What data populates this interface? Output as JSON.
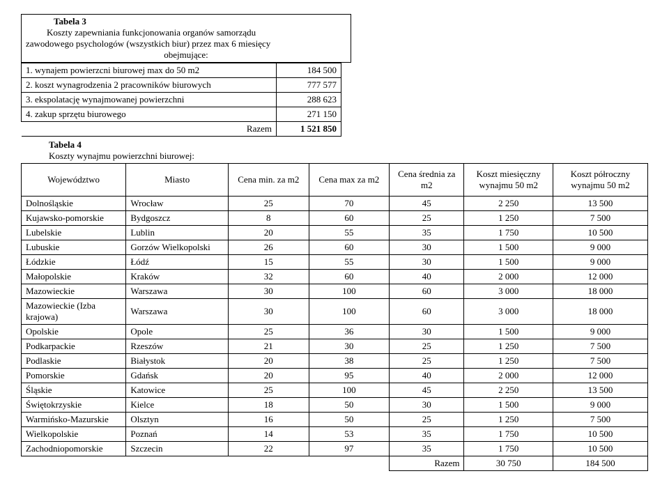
{
  "table3": {
    "label": "Tabela 3",
    "desc_line1": "Koszty zapewniania funkcjonowania organów samorządu",
    "desc_line2": "zawodowego psychologów (wszystkich biur) przez max 6 miesięcy",
    "desc_line3": "obejmujące:",
    "rows": [
      {
        "label": "1. wynajem powierzcni biurowej max do 50 m2",
        "value": "184 500"
      },
      {
        "label": "2. koszt wynagrodzenia 2 pracowników biurowych",
        "value": "777 577"
      },
      {
        "label": "3. ekspolatację wynajmowanej powierzchni",
        "value": "288 623"
      },
      {
        "label": "4. zakup sprzętu biurowego",
        "value": "271 150"
      }
    ],
    "razem_label": "Razem",
    "razem_value": "1 521 850"
  },
  "table4": {
    "label": "Tabela 4",
    "subtitle": "Koszty wynajmu powierzchni biurowej:",
    "headers": {
      "woj": "Województwo",
      "miasto": "Miasto",
      "cmin": "Cena min. za m2",
      "cmax": "Cena max za m2",
      "cavg": "Cena średnia za m2",
      "kmies": "Koszt miesięczny wynajmu 50 m2",
      "kpol": "Koszt półroczny wynajmu 50 m2"
    },
    "rows": [
      {
        "woj": "Dolnośląskie",
        "miasto": "Wrocław",
        "cmin": "25",
        "cmax": "70",
        "cavg": "45",
        "kmies": "2 250",
        "kpol": "13 500"
      },
      {
        "woj": "Kujawsko-pomorskie",
        "miasto": "Bydgoszcz",
        "cmin": "8",
        "cmax": "60",
        "cavg": "25",
        "kmies": "1 250",
        "kpol": "7 500"
      },
      {
        "woj": "Lubelskie",
        "miasto": "Lublin",
        "cmin": "20",
        "cmax": "55",
        "cavg": "35",
        "kmies": "1 750",
        "kpol": "10 500"
      },
      {
        "woj": "Lubuskie",
        "miasto": "Gorzów Wielkopolski",
        "cmin": "26",
        "cmax": "60",
        "cavg": "30",
        "kmies": "1 500",
        "kpol": "9 000"
      },
      {
        "woj": "Łódzkie",
        "miasto": "Łódź",
        "cmin": "15",
        "cmax": "55",
        "cavg": "30",
        "kmies": "1 500",
        "kpol": "9 000"
      },
      {
        "woj": "Małopolskie",
        "miasto": "Kraków",
        "cmin": "32",
        "cmax": "60",
        "cavg": "40",
        "kmies": "2 000",
        "kpol": "12 000"
      },
      {
        "woj": "Mazowieckie",
        "miasto": "Warszawa",
        "cmin": "30",
        "cmax": "100",
        "cavg": "60",
        "kmies": "3 000",
        "kpol": "18 000"
      },
      {
        "woj": "Mazowieckie (Izba krajowa)",
        "miasto": "Warszawa",
        "cmin": "30",
        "cmax": "100",
        "cavg": "60",
        "kmies": "3 000",
        "kpol": "18 000"
      },
      {
        "woj": "Opolskie",
        "miasto": "Opole",
        "cmin": "25",
        "cmax": "36",
        "cavg": "30",
        "kmies": "1 500",
        "kpol": "9 000"
      },
      {
        "woj": "Podkarpackie",
        "miasto": "Rzeszów",
        "cmin": "21",
        "cmax": "30",
        "cavg": "25",
        "kmies": "1 250",
        "kpol": "7 500"
      },
      {
        "woj": "Podlaskie",
        "miasto": "Białystok",
        "cmin": "20",
        "cmax": "38",
        "cavg": "25",
        "kmies": "1 250",
        "kpol": "7 500"
      },
      {
        "woj": "Pomorskie",
        "miasto": "Gdańsk",
        "cmin": "20",
        "cmax": "95",
        "cavg": "40",
        "kmies": "2 000",
        "kpol": "12 000"
      },
      {
        "woj": "Śląskie",
        "miasto": "Katowice",
        "cmin": "25",
        "cmax": "100",
        "cavg": "45",
        "kmies": "2 250",
        "kpol": "13 500"
      },
      {
        "woj": "Świętokrzyskie",
        "miasto": "Kielce",
        "cmin": "18",
        "cmax": "50",
        "cavg": "30",
        "kmies": "1 500",
        "kpol": "9 000"
      },
      {
        "woj": "Warmińsko-Mazurskie",
        "miasto": "Olsztyn",
        "cmin": "16",
        "cmax": "50",
        "cavg": "25",
        "kmies": "1 250",
        "kpol": "7 500"
      },
      {
        "woj": "Wielkopolskie",
        "miasto": "Poznań",
        "cmin": "14",
        "cmax": "53",
        "cavg": "35",
        "kmies": "1 750",
        "kpol": "10 500"
      },
      {
        "woj": "Zachodniopomorskie",
        "miasto": "Szczecin",
        "cmin": "22",
        "cmax": "97",
        "cavg": "35",
        "kmies": "1 750",
        "kpol": "10 500"
      }
    ],
    "razem_label": "Razem",
    "razem_kmies": "30 750",
    "razem_kpol": "184 500"
  }
}
